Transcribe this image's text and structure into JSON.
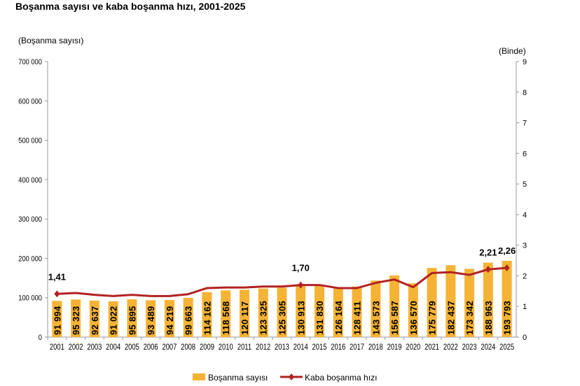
{
  "chart_data": {
    "type": "bar+line",
    "title": "Boşanma sayısı ve kaba boşanma hızı, 2001-2025",
    "ylabel_left": "(Boşanma sayısı)",
    "ylabel_right": "(Binde)",
    "ylim_left": [
      0,
      700000
    ],
    "ylim_right": [
      0,
      9
    ],
    "yticks_left": [
      "0",
      "100 000",
      "200 000",
      "300 000",
      "400 000",
      "500 000",
      "600 000",
      "700 000"
    ],
    "yticks_right": [
      "0",
      "1",
      "2",
      "3",
      "4",
      "5",
      "6",
      "7",
      "8",
      "9"
    ],
    "categories": [
      "2001",
      "2002",
      "2003",
      "2004",
      "2005",
      "2006",
      "2007",
      "2008",
      "2009",
      "2010",
      "2011",
      "2012",
      "2013",
      "2014",
      "2015",
      "2016",
      "2017",
      "2018",
      "2019",
      "2020",
      "2021",
      "2022",
      "2023",
      "2024",
      "2025"
    ],
    "grid": false,
    "legend_placement": "bottom",
    "series": [
      {
        "name": "Boşanma sayısı",
        "type": "bar",
        "axis": "left",
        "color": "#F5B335",
        "values": [
          91994,
          95323,
          92637,
          91022,
          95895,
          93489,
          94219,
          99663,
          114162,
          118568,
          120117,
          123325,
          125305,
          130913,
          131830,
          126164,
          128411,
          143573,
          156587,
          136570,
          175779,
          182437,
          173342,
          188963,
          193793
        ],
        "labels": [
          "91 994",
          "95 323",
          "92 637",
          "91 022",
          "95 895",
          "93 489",
          "94 219",
          "99 663",
          "114 162",
          "118 568",
          "120 117",
          "123 325",
          "125 305",
          "130 913",
          "131 830",
          "126 164",
          "128 411",
          "143 573",
          "156 587",
          "136 570",
          "175 779",
          "182 437",
          "173 342",
          "188 963",
          "193 793"
        ]
      },
      {
        "name": "Kaba boşanma hızı",
        "type": "line",
        "axis": "right",
        "color": "#B22222",
        "values": [
          1.41,
          1.44,
          1.38,
          1.34,
          1.38,
          1.34,
          1.34,
          1.4,
          1.6,
          1.62,
          1.62,
          1.65,
          1.65,
          1.7,
          1.7,
          1.6,
          1.6,
          1.77,
          1.88,
          1.63,
          2.09,
          2.12,
          2.03,
          2.21,
          2.26
        ],
        "point_labels": {
          "2001": "1,41",
          "2014": "1,70",
          "2024": "2,21",
          "2025": "2,26"
        }
      }
    ]
  }
}
